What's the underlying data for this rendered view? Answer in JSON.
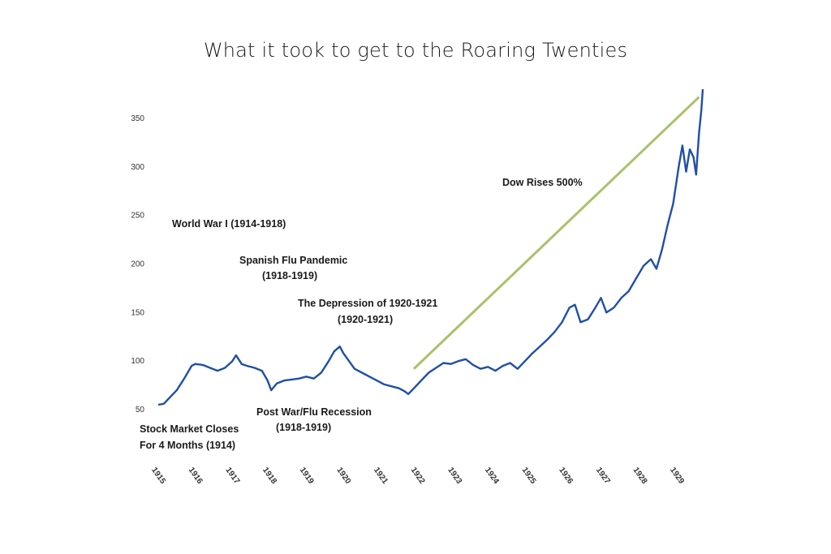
{
  "slide": {
    "title": "What it took to get to the Roaring Twenties"
  },
  "chart_data": {
    "type": "line",
    "title": "What it took to get to the Roaring Twenties",
    "xlabel": "",
    "ylabel": "",
    "xlim": [
      1915,
      1929.7
    ],
    "ylim": [
      50,
      380
    ],
    "y_ticks": [
      50,
      100,
      150,
      200,
      250,
      300,
      350
    ],
    "x_ticks": [
      "1915",
      "1916",
      "1917",
      "1918",
      "1919",
      "1920",
      "1921",
      "1922",
      "1923",
      "1924",
      "1925",
      "1926",
      "1927",
      "1928",
      "1929"
    ],
    "grid": false,
    "legend": "none",
    "series": [
      {
        "color": "#1f4fa8",
        "points": [
          [
            1915.0,
            55
          ],
          [
            1915.15,
            56
          ],
          [
            1915.3,
            62
          ],
          [
            1915.5,
            70
          ],
          [
            1915.7,
            82
          ],
          [
            1915.9,
            95
          ],
          [
            1916.0,
            97
          ],
          [
            1916.2,
            96
          ],
          [
            1916.4,
            93
          ],
          [
            1916.6,
            90
          ],
          [
            1916.8,
            93
          ],
          [
            1917.0,
            100
          ],
          [
            1917.1,
            106
          ],
          [
            1917.25,
            97
          ],
          [
            1917.4,
            95
          ],
          [
            1917.6,
            93
          ],
          [
            1917.8,
            90
          ],
          [
            1917.95,
            80
          ],
          [
            1918.05,
            70
          ],
          [
            1918.2,
            77
          ],
          [
            1918.4,
            80
          ],
          [
            1918.6,
            81
          ],
          [
            1918.8,
            82
          ],
          [
            1919.0,
            84
          ],
          [
            1919.2,
            82
          ],
          [
            1919.4,
            88
          ],
          [
            1919.6,
            100
          ],
          [
            1919.75,
            110
          ],
          [
            1919.9,
            115
          ],
          [
            1920.0,
            108
          ],
          [
            1920.15,
            100
          ],
          [
            1920.3,
            92
          ],
          [
            1920.5,
            88
          ],
          [
            1920.7,
            84
          ],
          [
            1920.9,
            80
          ],
          [
            1921.1,
            76
          ],
          [
            1921.3,
            74
          ],
          [
            1921.5,
            72
          ],
          [
            1921.65,
            69
          ],
          [
            1921.75,
            66
          ],
          [
            1921.9,
            72
          ],
          [
            1922.1,
            80
          ],
          [
            1922.3,
            88
          ],
          [
            1922.5,
            93
          ],
          [
            1922.7,
            98
          ],
          [
            1922.9,
            97
          ],
          [
            1923.1,
            100
          ],
          [
            1923.3,
            102
          ],
          [
            1923.5,
            96
          ],
          [
            1923.7,
            92
          ],
          [
            1923.9,
            94
          ],
          [
            1924.1,
            90
          ],
          [
            1924.3,
            95
          ],
          [
            1924.5,
            98
          ],
          [
            1924.7,
            92
          ],
          [
            1924.9,
            100
          ],
          [
            1925.1,
            108
          ],
          [
            1925.3,
            115
          ],
          [
            1925.5,
            122
          ],
          [
            1925.7,
            130
          ],
          [
            1925.9,
            140
          ],
          [
            1926.1,
            155
          ],
          [
            1926.25,
            158
          ],
          [
            1926.4,
            140
          ],
          [
            1926.6,
            143
          ],
          [
            1926.8,
            155
          ],
          [
            1926.95,
            165
          ],
          [
            1927.1,
            150
          ],
          [
            1927.3,
            155
          ],
          [
            1927.5,
            165
          ],
          [
            1927.7,
            172
          ],
          [
            1927.9,
            185
          ],
          [
            1928.1,
            198
          ],
          [
            1928.3,
            205
          ],
          [
            1928.45,
            195
          ],
          [
            1928.6,
            215
          ],
          [
            1928.75,
            240
          ],
          [
            1928.9,
            262
          ],
          [
            1929.05,
            300
          ],
          [
            1929.15,
            322
          ],
          [
            1929.25,
            295
          ],
          [
            1929.35,
            318
          ],
          [
            1929.45,
            310
          ],
          [
            1929.52,
            292
          ],
          [
            1929.6,
            335
          ],
          [
            1929.66,
            358
          ],
          [
            1929.7,
            380
          ]
        ]
      }
    ],
    "trend_line": {
      "color": "#a9c26a",
      "from": [
        1921.9,
        92
      ],
      "to": [
        1929.6,
        372
      ]
    },
    "annotations": [
      {
        "text": "World War I (1914-1918)"
      },
      {
        "text": "Spanish Flu Pandemic"
      },
      {
        "text": "(1918-1919)"
      },
      {
        "text": "The Depression of 1920-1921"
      },
      {
        "text": "(1920-1921)"
      },
      {
        "text": "Post War/Flu Recession"
      },
      {
        "text": "(1918-1919)"
      },
      {
        "text": "Stock Market Closes"
      },
      {
        "text": "For 4 Months (1914)"
      },
      {
        "text": "Dow Rises 500%"
      }
    ]
  }
}
